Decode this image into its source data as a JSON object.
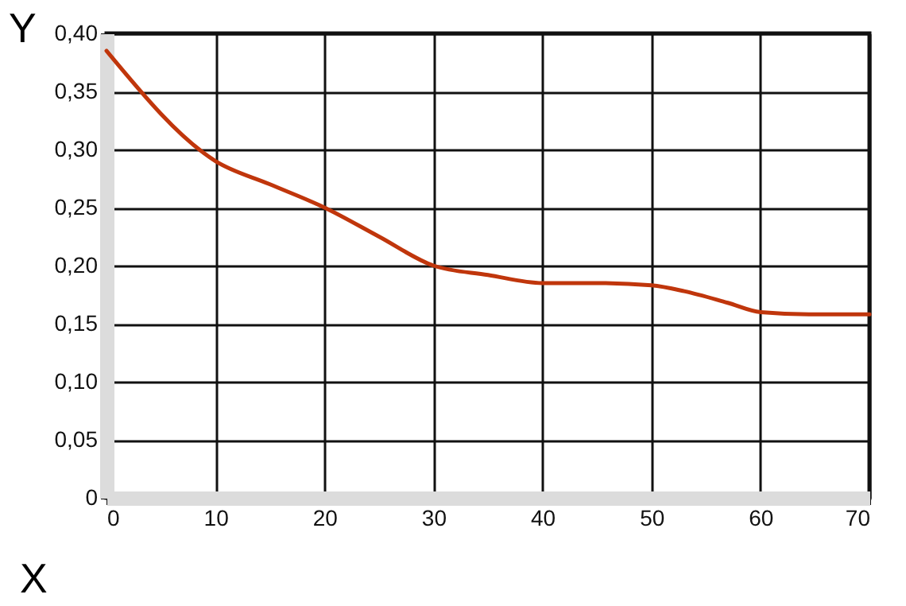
{
  "chart_data": {
    "type": "line",
    "xlabel": "X",
    "ylabel": "Y",
    "x": [
      0,
      10,
      15,
      20,
      25,
      30,
      35,
      40,
      45,
      50,
      53,
      57,
      60,
      65,
      70
    ],
    "series": [
      {
        "color": "#c0360c",
        "values": [
          0.385,
          0.29,
          0.27,
          0.25,
          0.225,
          0.2,
          0.192,
          0.185,
          0.185,
          0.183,
          0.178,
          0.168,
          0.16,
          0.158,
          0.158
        ]
      }
    ],
    "xlim": [
      0,
      70
    ],
    "xticks": [
      0,
      10,
      20,
      30,
      40,
      50,
      60,
      70
    ],
    "ylim": [
      0,
      0.4
    ],
    "yticks": [
      0,
      {
        "value": 0.05,
        "label": "0,05"
      },
      {
        "value": 0.1,
        "label": "0,10"
      },
      {
        "value": 0.15,
        "label": "0,15"
      },
      {
        "value": 0.2,
        "label": "0,20"
      },
      {
        "value": 0.25,
        "label": "0,25"
      },
      {
        "value": 0.3,
        "label": "0,30"
      },
      {
        "value": 0.35,
        "label": "0,35"
      },
      {
        "value": 0.4,
        "label": "0,40"
      }
    ],
    "grid": true,
    "legend": false,
    "marker": "none",
    "line_style": "solid"
  }
}
